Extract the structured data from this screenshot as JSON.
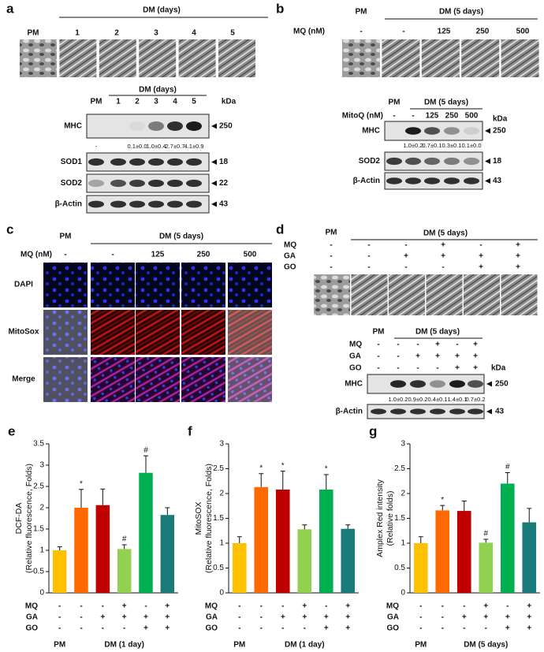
{
  "panels": {
    "a": {
      "label": "a",
      "images": {
        "pm": "PM",
        "group": "DM (days)",
        "lanes": [
          "1",
          "2",
          "3",
          "4",
          "5"
        ]
      },
      "blot": {
        "pm": "PM",
        "group": "DM (days)",
        "lanes": [
          "1",
          "2",
          "3",
          "4",
          "5"
        ],
        "kda": "kDa",
        "rows": [
          {
            "name": "MHC",
            "size": "250",
            "quant": [
              "-",
              null,
              "0.1±0.0",
              "1.0±0.4",
              "2.7±0.7",
              "4.1±0.9"
            ]
          },
          {
            "name": "SOD1",
            "size": "18"
          },
          {
            "name": "SOD2",
            "size": "22"
          },
          {
            "name": "β-Actin",
            "size": "43"
          }
        ]
      }
    },
    "b": {
      "label": "b",
      "images": {
        "pm": "PM",
        "group": "DM (5 days)",
        "dose_label": "MQ (nM)",
        "doses": [
          "-",
          "-",
          "125",
          "250",
          "500"
        ]
      },
      "blot": {
        "pm": "PM",
        "group": "DM (5 days)",
        "dose_label": "MitoQ (nM)",
        "doses": [
          "-",
          "-",
          "125",
          "250",
          "500"
        ],
        "kda": "kDa",
        "rows": [
          {
            "name": "MHC",
            "size": "250",
            "quant": [
              null,
              "1.0±0.2",
              "0.7±0.1",
              "0.3±0.1",
              "0.1±0.0"
            ]
          },
          {
            "name": "SOD2",
            "size": "18"
          },
          {
            "name": "β-Actin",
            "size": "43"
          }
        ]
      }
    },
    "c": {
      "label": "c",
      "pm": "PM",
      "group": "DM (5 days)",
      "dose_label": "MQ (nM)",
      "doses": [
        "-",
        "-",
        "125",
        "250",
        "500"
      ],
      "rows": [
        "DAPI",
        "MitoSox",
        "Merge"
      ]
    },
    "d": {
      "label": "d",
      "images": {
        "pm": "PM",
        "group": "DM (5 days)",
        "conditions": [
          {
            "name": "MQ",
            "values": [
              "-",
              "-",
              "-",
              "+",
              "-",
              "+"
            ]
          },
          {
            "name": "GA",
            "values": [
              "-",
              "-",
              "+",
              "+",
              "+",
              "+"
            ]
          },
          {
            "name": "GO",
            "values": [
              "-",
              "-",
              "-",
              "-",
              "+",
              "+"
            ]
          }
        ]
      },
      "blot": {
        "pm": "PM",
        "group": "DM (5 days)",
        "kda": "kDa",
        "conditions": [
          {
            "name": "MQ",
            "values": [
              "-",
              "-",
              "-",
              "+",
              "-",
              "+"
            ]
          },
          {
            "name": "GA",
            "values": [
              "-",
              "-",
              "+",
              "+",
              "+",
              "+"
            ]
          },
          {
            "name": "GO",
            "values": [
              "-",
              "-",
              "-",
              "-",
              "+",
              "+"
            ]
          }
        ],
        "rows": [
          {
            "name": "MHC",
            "size": "250",
            "quant": [
              null,
              "1.0±0.2",
              "0.9±0.2",
              "0.4±0.1",
              "1.4±0.1",
              "0.7±0.2"
            ]
          },
          {
            "name": "β-Actin",
            "size": "43"
          }
        ]
      }
    }
  },
  "chart_data": [
    {
      "type": "bar",
      "label": "e",
      "ylabel": [
        "DCF-DA",
        "(Relative fluorescence, Folds)"
      ],
      "categories": [
        null,
        null,
        null,
        null,
        null,
        null
      ],
      "values": [
        1.0,
        2.0,
        2.06,
        1.03,
        2.82,
        1.83
      ],
      "errors": [
        0.08,
        0.43,
        0.38,
        0.1,
        0.4,
        0.17
      ],
      "markers": [
        null,
        "*",
        null,
        "#",
        "#",
        null
      ],
      "colors": [
        "#ffc000",
        "#ff6a00",
        "#c00000",
        "#92d050",
        "#00b050",
        "#1b7a7a"
      ],
      "ylim": [
        0,
        3.5
      ],
      "yticks": [
        0,
        0.5,
        1,
        1.5,
        2,
        2.5,
        3,
        3.5
      ],
      "conditions": [
        {
          "name": "MQ",
          "values": [
            "-",
            "-",
            "-",
            "+",
            "-",
            "+"
          ]
        },
        {
          "name": "GA",
          "values": [
            "-",
            "-",
            "+",
            "+",
            "+",
            "+"
          ]
        },
        {
          "name": "GO",
          "values": [
            "-",
            "-",
            "-",
            "-",
            "+",
            "+"
          ]
        }
      ],
      "groups": [
        "PM",
        "DM (1 day)"
      ]
    },
    {
      "type": "bar",
      "label": "f",
      "ylabel": [
        "MitoSOX",
        "(Relative fluorescence, Folds)"
      ],
      "categories": [
        null,
        null,
        null,
        null,
        null,
        null
      ],
      "values": [
        1.0,
        2.13,
        2.08,
        1.28,
        2.08,
        1.29
      ],
      "errors": [
        0.13,
        0.27,
        0.37,
        0.09,
        0.3,
        0.08
      ],
      "markers": [
        null,
        "*",
        "*",
        null,
        "*",
        null
      ],
      "colors": [
        "#ffc000",
        "#ff6a00",
        "#c00000",
        "#92d050",
        "#00b050",
        "#1b7a7a"
      ],
      "ylim": [
        0,
        3
      ],
      "yticks": [
        0,
        0.5,
        1,
        1.5,
        2,
        2.5,
        3
      ],
      "conditions": [
        {
          "name": "MQ",
          "values": [
            "-",
            "-",
            "-",
            "+",
            "-",
            "+"
          ]
        },
        {
          "name": "GA",
          "values": [
            "-",
            "-",
            "+",
            "+",
            "+",
            "+"
          ]
        },
        {
          "name": "GO",
          "values": [
            "-",
            "-",
            "-",
            "-",
            "+",
            "+"
          ]
        }
      ],
      "groups": [
        "PM",
        "DM (1 day)"
      ]
    },
    {
      "type": "bar",
      "label": "g",
      "ylabel": [
        "Amplex Red intensity",
        "(Relative  folds)"
      ],
      "categories": [
        null,
        null,
        null,
        null,
        null,
        null
      ],
      "values": [
        1.0,
        1.66,
        1.65,
        1.01,
        2.2,
        1.42
      ],
      "errors": [
        0.13,
        0.1,
        0.2,
        0.07,
        0.22,
        0.28
      ],
      "markers": [
        null,
        "*",
        null,
        "#",
        "#",
        null
      ],
      "colors": [
        "#ffc000",
        "#ff6a00",
        "#c00000",
        "#92d050",
        "#00b050",
        "#1b7a7a"
      ],
      "ylim": [
        0,
        3
      ],
      "yticks": [
        0,
        0.5,
        1,
        1.5,
        2,
        2.5,
        3
      ],
      "conditions": [
        {
          "name": "MQ",
          "values": [
            "-",
            "-",
            "-",
            "+",
            "-",
            "+"
          ]
        },
        {
          "name": "GA",
          "values": [
            "-",
            "-",
            "+",
            "+",
            "+",
            "+"
          ]
        },
        {
          "name": "GO",
          "values": [
            "-",
            "-",
            "-",
            "-",
            "+",
            "+"
          ]
        }
      ],
      "groups": [
        "PM",
        "DM (5 days)"
      ]
    }
  ]
}
